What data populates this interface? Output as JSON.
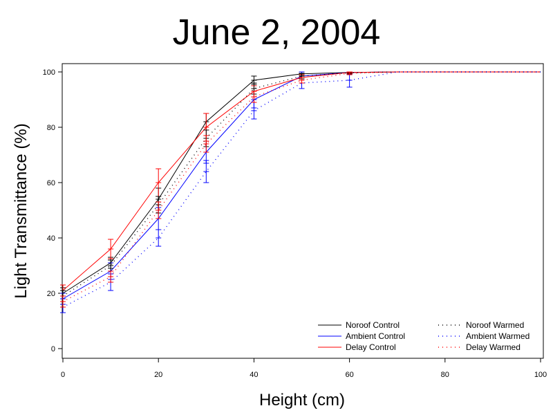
{
  "chart_data": {
    "type": "line",
    "title": "June 2, 2004",
    "xlabel": "Height (cm)",
    "ylabel": "Light Transmittance (%)",
    "xlim": [
      0,
      100
    ],
    "ylim": [
      0,
      100
    ],
    "xticks": [
      "0",
      "20",
      "40",
      "60",
      "80",
      "100"
    ],
    "yticks": [
      "0",
      "20",
      "40",
      "60",
      "80",
      "100"
    ],
    "grid": false,
    "legend_position": "bottom-right",
    "series": [
      {
        "name": "Noroof Control",
        "color": "#000000",
        "style": "solid",
        "x": [
          0,
          10,
          20,
          30,
          40,
          50,
          60,
          70,
          80,
          90,
          100
        ],
        "y": [
          20,
          31,
          54,
          82,
          97,
          99.3,
          99.8,
          100,
          100,
          100,
          100
        ],
        "err": [
          2,
          2,
          4,
          3,
          1.5,
          0.7,
          0.3,
          0,
          0,
          0,
          0
        ]
      },
      {
        "name": "Ambient Control",
        "color": "#0000ff",
        "style": "solid",
        "x": [
          0,
          10,
          20,
          30,
          40,
          50,
          60,
          70,
          80,
          90,
          100
        ],
        "y": [
          18,
          28,
          47,
          71,
          90,
          98.5,
          99.8,
          100,
          100,
          100,
          100
        ],
        "err": [
          2,
          3,
          4,
          4,
          3,
          1.5,
          0.6,
          0,
          0,
          0,
          0
        ]
      },
      {
        "name": "Delay Control",
        "color": "#ff0000",
        "style": "solid",
        "x": [
          0,
          10,
          20,
          30,
          40,
          50,
          60,
          70,
          80,
          90,
          100
        ],
        "y": [
          21,
          36,
          60,
          80,
          93,
          98,
          99.8,
          100,
          100,
          100,
          100
        ],
        "err": [
          2,
          3.5,
          5,
          5,
          2,
          1,
          0.4,
          0,
          0,
          0,
          0
        ]
      },
      {
        "name": "Noroof Warmed",
        "color": "#000000",
        "style": "dotted",
        "x": [
          0,
          10,
          20,
          30,
          40,
          50,
          60,
          70,
          80,
          90,
          100
        ],
        "y": [
          19,
          30,
          52,
          76,
          94,
          98.5,
          99.7,
          100,
          100,
          100,
          100
        ],
        "err": [
          2,
          2,
          3,
          3,
          2,
          1,
          0.4,
          0,
          0,
          0,
          0
        ]
      },
      {
        "name": "Ambient Warmed",
        "color": "#0000ff",
        "style": "dotted",
        "x": [
          0,
          10,
          20,
          30,
          40,
          50,
          60,
          70,
          80,
          90,
          100
        ],
        "y": [
          15,
          24,
          40,
          64,
          86,
          96,
          97,
          100,
          100,
          100,
          100
        ],
        "err": [
          2,
          3,
          3,
          4,
          3,
          2,
          2.5,
          0,
          0,
          0,
          0
        ]
      },
      {
        "name": "Delay Warmed",
        "color": "#ff0000",
        "style": "dotted",
        "x": [
          0,
          10,
          20,
          30,
          40,
          50,
          60,
          70,
          80,
          90,
          100
        ],
        "y": [
          17,
          26,
          50,
          74,
          91,
          97,
          99.5,
          100,
          100,
          100,
          100
        ],
        "err": [
          2,
          2,
          3,
          3,
          2,
          1,
          0.5,
          0,
          0,
          0,
          0
        ]
      }
    ]
  }
}
